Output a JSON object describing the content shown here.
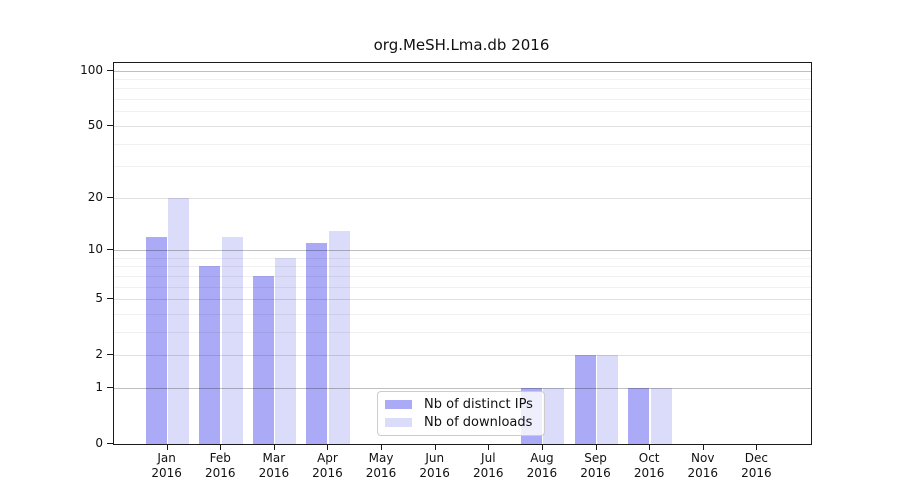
{
  "title": "org.MeSH.Lma.db 2016",
  "chart_data": {
    "type": "bar",
    "title": "org.MeSH.Lma.db 2016",
    "y_scale": "log1p",
    "grid": true,
    "legend_position": "lower center",
    "categories": [
      "Jan 2016",
      "Feb 2016",
      "Mar 2016",
      "Apr 2016",
      "May 2016",
      "Jun 2016",
      "Jul 2016",
      "Aug 2016",
      "Sep 2016",
      "Oct 2016",
      "Nov 2016",
      "Dec 2016"
    ],
    "category_months": [
      "Jan",
      "Feb",
      "Mar",
      "Apr",
      "May",
      "Jun",
      "Jul",
      "Aug",
      "Sep",
      "Oct",
      "Nov",
      "Dec"
    ],
    "category_year": "2016",
    "series": [
      {
        "name": "Nb of distinct IPs",
        "color": "#aaaaf6",
        "values": [
          12,
          8,
          7,
          11,
          0,
          0,
          0,
          1,
          2,
          1,
          0,
          0
        ]
      },
      {
        "name": "Nb of downloads",
        "color": "#dbdbfa",
        "values": [
          20,
          12,
          9,
          13,
          0,
          0,
          0,
          1,
          2,
          1,
          0,
          0
        ]
      }
    ],
    "y_ticks": [
      0,
      1,
      2,
      5,
      10,
      20,
      50,
      100
    ],
    "y_tick_labels": [
      "0",
      "1",
      "2",
      "5",
      "10",
      "20",
      "50",
      "100"
    ],
    "y_minor_gridlines": [
      3,
      4,
      6,
      7,
      8,
      9,
      30,
      40,
      60,
      70,
      80,
      90
    ],
    "ylim": [
      0,
      110
    ],
    "xlabel": "",
    "ylabel": ""
  },
  "legend": {
    "items": [
      "Nb of distinct IPs",
      "Nb of downloads"
    ]
  }
}
